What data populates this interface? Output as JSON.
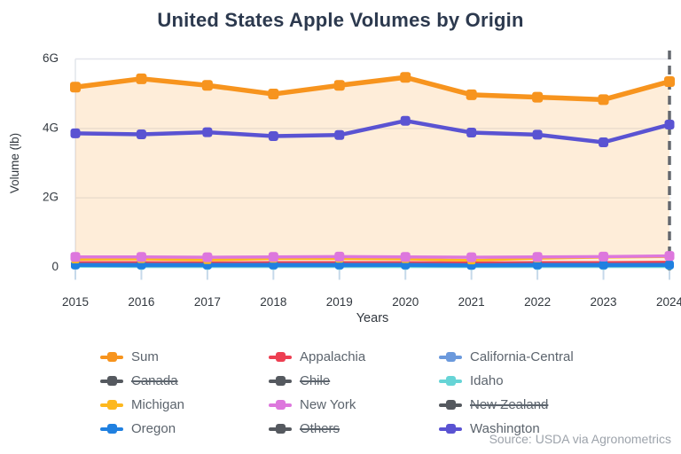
{
  "title": "United States Apple Volumes by Origin",
  "source": "Source: USDA via Agronometrics",
  "colors": {
    "title": "#2C394E",
    "axis_text": "#32383F",
    "grid": "#E9ECF1",
    "border": "#E2E5EC",
    "tick": "#C6D9EA",
    "dashed_line": "#64686F",
    "area_fill": "rgba(247,148,30,0.17)",
    "disabled": "#55595F"
  },
  "chart_data": {
    "type": "line",
    "title": "United States Apple Volumes by Origin",
    "xlabel": "Years",
    "ylabel": "Volume (lb)",
    "x": [
      2015,
      2016,
      2017,
      2018,
      2019,
      2020,
      2021,
      2022,
      2023,
      2024
    ],
    "ylim": [
      0,
      6
    ],
    "yticks": [
      0,
      2,
      4,
      6
    ],
    "ytick_labels": [
      "0",
      "2G",
      "4G",
      "6G"
    ],
    "grid": "horizontal",
    "legend_position": "bottom",
    "units": "G = billions of lb",
    "annotation": {
      "type": "dashed-vertical-line",
      "x": 2024
    },
    "series": [
      {
        "name": "Idaho",
        "color": "#66D4D6",
        "line_width": 3,
        "marker_size": 7,
        "values": [
          0.03,
          0.02,
          0.02,
          0.02,
          0.02,
          0.02,
          0.02,
          0.02,
          0.02,
          0.02
        ]
      },
      {
        "name": "California-Central",
        "color": "#6B99DC",
        "line_width": 3,
        "marker_size": 7,
        "values": [
          0.05,
          0.04,
          0.04,
          0.04,
          0.04,
          0.05,
          0.04,
          0.04,
          0.04,
          0.05
        ]
      },
      {
        "name": "Appalachia",
        "color": "#ED3F52",
        "line_width": 3,
        "marker_size": 7,
        "values": [
          0.14,
          0.14,
          0.13,
          0.14,
          0.14,
          0.14,
          0.13,
          0.14,
          0.14,
          0.15
        ]
      },
      {
        "name": "Oregon",
        "color": "#2080E0",
        "line_width": 4.5,
        "marker_size": 10,
        "values": [
          0.07,
          0.07,
          0.07,
          0.07,
          0.07,
          0.07,
          0.06,
          0.07,
          0.07,
          0.07
        ]
      },
      {
        "name": "Michigan",
        "color": "#FDB81E",
        "line_width": 3,
        "marker_size": 9,
        "values": [
          0.23,
          0.24,
          0.21,
          0.25,
          0.25,
          0.24,
          0.2,
          0.26,
          0.29,
          0.31
        ]
      },
      {
        "name": "New York",
        "color": "#DD77DD",
        "line_width": 3.5,
        "marker_size": 11,
        "values": [
          0.3,
          0.3,
          0.29,
          0.3,
          0.31,
          0.3,
          0.29,
          0.3,
          0.31,
          0.33
        ]
      },
      {
        "name": "Washington",
        "color": "#5A53D2",
        "line_width": 4.5,
        "marker_size": 11,
        "values": [
          3.86,
          3.83,
          3.89,
          3.78,
          3.81,
          4.22,
          3.88,
          3.82,
          3.6,
          4.11
        ]
      },
      {
        "name": "Sum",
        "color": "#F7941E",
        "line_width": 5.5,
        "marker_size": 12,
        "area": true,
        "values": [
          5.19,
          5.43,
          5.24,
          4.99,
          5.24,
          5.47,
          4.97,
          4.9,
          4.83,
          5.35
        ]
      }
    ],
    "disabled_series": [
      "Canada",
      "Chile",
      "New Zealand",
      "Others"
    ]
  },
  "legend": {
    "items": [
      {
        "label": "Sum",
        "color": "#F7941E",
        "struck": false
      },
      {
        "label": "Appalachia",
        "color": "#ED3F52",
        "struck": false
      },
      {
        "label": "California-Central",
        "color": "#6B99DC",
        "struck": false
      },
      {
        "label": "Canada",
        "color": "#55595F",
        "struck": true
      },
      {
        "label": "Chile",
        "color": "#55595F",
        "struck": true
      },
      {
        "label": "Idaho",
        "color": "#66D4D6",
        "struck": false
      },
      {
        "label": "Michigan",
        "color": "#FDB81E",
        "struck": false
      },
      {
        "label": "New York",
        "color": "#DD77DD",
        "struck": false
      },
      {
        "label": "New Zealand",
        "color": "#55595F",
        "struck": true
      },
      {
        "label": "Oregon",
        "color": "#2080E0",
        "struck": false
      },
      {
        "label": "Others",
        "color": "#55595F",
        "struck": true
      },
      {
        "label": "Washington",
        "color": "#5A53D2",
        "struck": false
      }
    ]
  }
}
